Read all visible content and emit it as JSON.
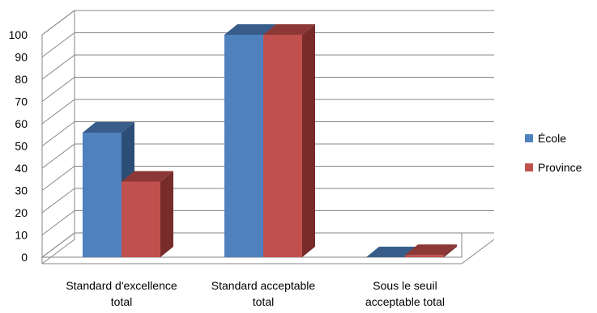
{
  "chart_data": {
    "type": "bar",
    "style": "3d-clustered",
    "categories": [
      [
        "Standard d'excellence",
        "total"
      ],
      [
        "Standard acceptable",
        "total"
      ],
      [
        "Sous le seuil",
        "acceptable total"
      ]
    ],
    "series": [
      {
        "name": "École",
        "values": [
          56,
          100,
          0
        ],
        "color": "#4F81BD",
        "top_color": "#385D8A",
        "side_color": "#2C4D75"
      },
      {
        "name": "Province",
        "values": [
          34,
          100,
          1
        ],
        "color": "#C0504D",
        "top_color": "#8C3836",
        "side_color": "#772C2A"
      }
    ],
    "ylim": [
      0,
      100
    ],
    "yticks": [
      0,
      10,
      20,
      30,
      40,
      50,
      60,
      70,
      80,
      90,
      100
    ],
    "grid": true,
    "legend_position": "right",
    "title": "",
    "xlabel": "",
    "ylabel": ""
  }
}
